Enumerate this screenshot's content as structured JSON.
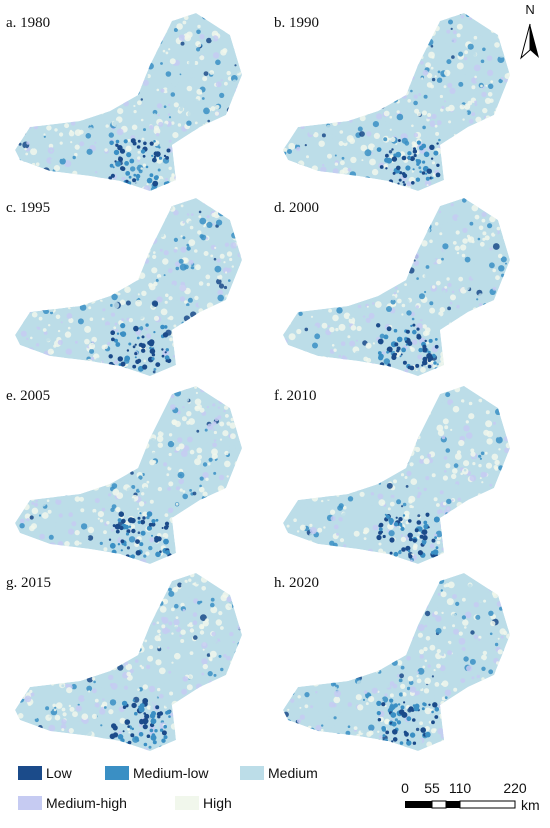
{
  "panels": [
    {
      "label": "a. 1980"
    },
    {
      "label": "b. 1990"
    },
    {
      "label": "c. 1995"
    },
    {
      "label": "d. 2000"
    },
    {
      "label": "e. 2005"
    },
    {
      "label": "f. 2010"
    },
    {
      "label": "g. 2015"
    },
    {
      "label": "h. 2020"
    }
  ],
  "north_arrow": "N",
  "legend": {
    "items": [
      {
        "label": "Low",
        "color": "#1b4b8a"
      },
      {
        "label": "Medium-low",
        "color": "#3a8fc4"
      },
      {
        "label": "Medium",
        "color": "#bcdde8"
      },
      {
        "label": "Medium-high",
        "color": "#c6cbf2"
      },
      {
        "label": "High",
        "color": "#f1f7ec"
      }
    ]
  },
  "scale_bar": {
    "labels": [
      "0",
      "55",
      "110",
      "220"
    ],
    "unit": "km"
  }
}
